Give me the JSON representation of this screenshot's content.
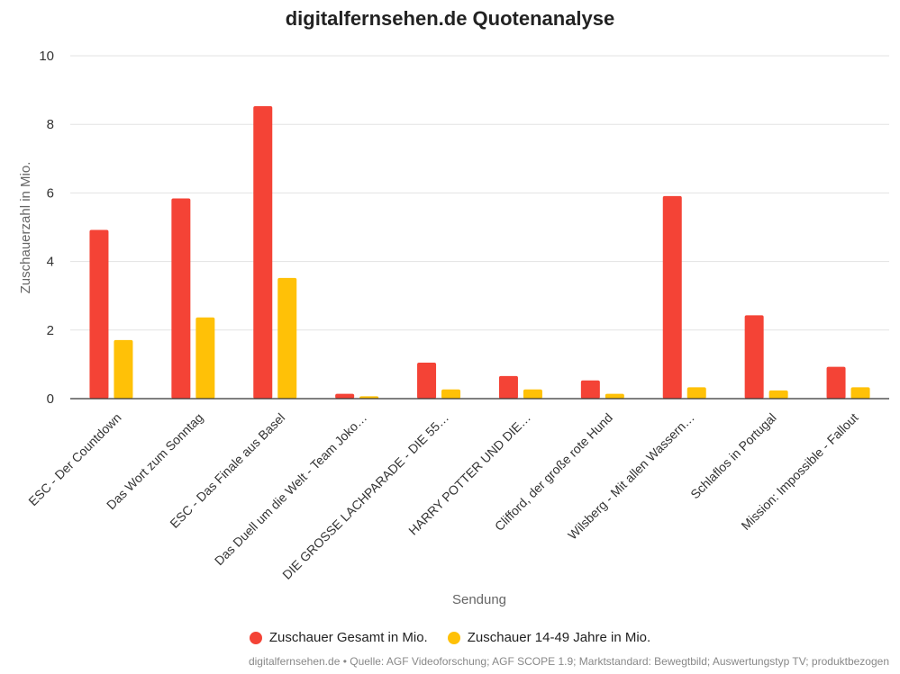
{
  "chart_data": {
    "type": "bar",
    "title": "digitalfernsehen.de Quotenanalyse",
    "xlabel": "Sendung",
    "ylabel": "Zuschauerzahl in Mio.",
    "ylim": [
      0,
      10
    ],
    "yticks": [
      0,
      2,
      4,
      6,
      8,
      10
    ],
    "grid": true,
    "legend_position": "bottom",
    "categories": [
      "ESC - Der Countdown",
      "Das Wort zum Sonntag",
      "ESC - Das Finale aus Basel",
      "Das Duell um die Welt - Team Joko…",
      "DIE GROSSE LACHPARADE - DIE 55…",
      "HARRY POTTER UND DIE…",
      "Clifford, der große rote Hund",
      "Wilsberg - Mit allen Wassern…",
      "Schlaflos in Portugal",
      "Mission: Impossible - Fallout"
    ],
    "series": [
      {
        "name": "Zuschauer Gesamt in Mio.",
        "color": "#f44336",
        "values": [
          4.92,
          5.84,
          8.53,
          0.14,
          1.05,
          0.66,
          0.53,
          5.91,
          2.43,
          0.93
        ]
      },
      {
        "name": "Zuschauer 14-49 Jahre in Mio.",
        "color": "#ffc107",
        "values": [
          1.71,
          2.37,
          3.52,
          0.07,
          0.27,
          0.27,
          0.14,
          0.33,
          0.24,
          0.33
        ]
      }
    ],
    "source": "digitalfernsehen.de • Quelle: AGF Videoforschung; AGF SCOPE 1.9; Marktstandard: Bewegtbild; Auswertungstyp TV; produktbezogen"
  }
}
